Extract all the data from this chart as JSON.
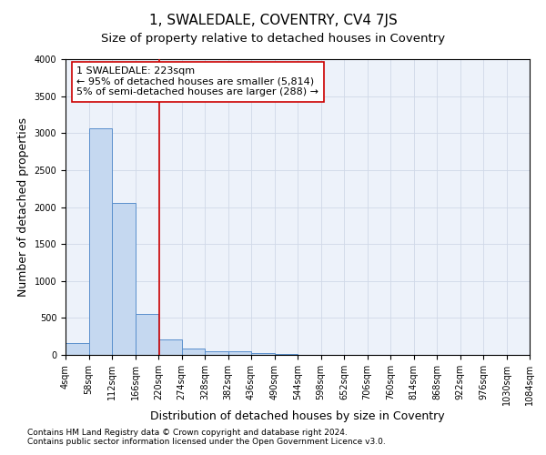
{
  "title": "1, SWALEDALE, COVENTRY, CV4 7JS",
  "subtitle": "Size of property relative to detached houses in Coventry",
  "xlabel": "Distribution of detached houses by size in Coventry",
  "ylabel": "Number of detached properties",
  "bar_color": "#c5d8f0",
  "bar_edge_color": "#5a8fcc",
  "bin_edges": [
    4,
    58,
    112,
    166,
    220,
    274,
    328,
    382,
    436,
    490,
    544,
    598,
    652,
    706,
    760,
    814,
    868,
    922,
    976,
    1030,
    1084
  ],
  "bar_heights": [
    155,
    3060,
    2060,
    560,
    210,
    90,
    55,
    45,
    20,
    10,
    5,
    3,
    2,
    2,
    1,
    1,
    1,
    1,
    1,
    1
  ],
  "property_size": 223,
  "vline_color": "#cc0000",
  "annotation_text": "1 SWALEDALE: 223sqm\n← 95% of detached houses are smaller (5,814)\n5% of semi-detached houses are larger (288) →",
  "annotation_box_color": "#ffffff",
  "annotation_box_edge": "#cc0000",
  "ylim": [
    0,
    4000
  ],
  "xlim": [
    4,
    1084
  ],
  "grid_color": "#d0d8e8",
  "footnote1": "Contains HM Land Registry data © Crown copyright and database right 2024.",
  "footnote2": "Contains public sector information licensed under the Open Government Licence v3.0.",
  "title_fontsize": 11,
  "subtitle_fontsize": 9.5,
  "axis_label_fontsize": 9,
  "tick_fontsize": 7,
  "annot_fontsize": 8
}
